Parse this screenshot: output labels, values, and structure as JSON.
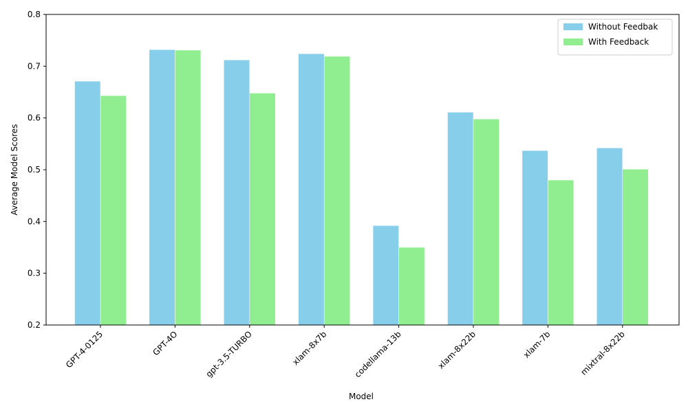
{
  "chart_data": {
    "type": "bar",
    "x_label": "Model",
    "y_label": "Average Model Scores",
    "categories": [
      "GPT-4-0125",
      "GPT-4O",
      "gpt-3.5-TURBO",
      "xlam-8x7b",
      "codellama-13b",
      "xlam-8x22b",
      "xlam-7b",
      "mixtral-8x22b"
    ],
    "series": [
      {
        "name": "Without Feedbak",
        "color": "#87ceeb",
        "values": [
          0.671,
          0.732,
          0.712,
          0.724,
          0.392,
          0.611,
          0.537,
          0.542
        ]
      },
      {
        "name": "With Feedback",
        "color": "#90ee90",
        "values": [
          0.643,
          0.731,
          0.648,
          0.719,
          0.35,
          0.598,
          0.48,
          0.501
        ]
      }
    ],
    "ylim": [
      0.2,
      0.8
    ],
    "yticks": [
      0.2,
      0.3,
      0.4,
      0.5,
      0.6,
      0.7,
      0.8
    ],
    "legend": "upper right"
  }
}
